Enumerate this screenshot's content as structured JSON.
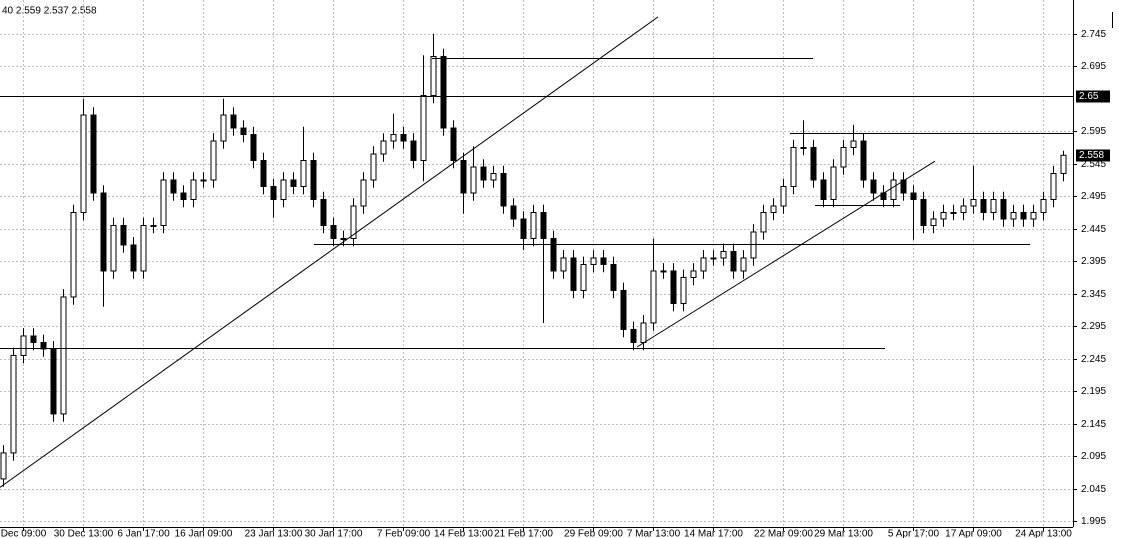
{
  "chart_data": {
    "type": "candlestick",
    "header": "40 2.559 2.537 2.558",
    "categories": [
      null,
      null,
      "Dec 09:00",
      null,
      null,
      null,
      null,
      null,
      "30 Dec 13:00",
      null,
      null,
      null,
      null,
      null,
      "6 Jan 17:00",
      null,
      null,
      null,
      null,
      null,
      "16 Jan 09:00",
      null,
      null,
      null,
      null,
      null,
      null,
      "23 Jan 13:00",
      null,
      null,
      null,
      null,
      null,
      "30 Jan 17:00",
      null,
      null,
      null,
      null,
      null,
      null,
      "7 Feb 09:00",
      null,
      null,
      null,
      null,
      null,
      "14 Feb 13:00",
      null,
      null,
      null,
      null,
      null,
      "21 Feb 17:00",
      null,
      null,
      null,
      null,
      null,
      null,
      "29 Feb 09:00",
      null,
      null,
      null,
      null,
      null,
      "7 Mar 13:00",
      null,
      null,
      null,
      null,
      null,
      "14 Mar 17:00",
      null,
      null,
      null,
      null,
      null,
      null,
      "22 Mar 09:00",
      null,
      null,
      null,
      null,
      null,
      "29 Mar 13:00",
      null,
      null,
      null,
      null,
      null,
      null,
      "5 Apr 17:00",
      null,
      null,
      null,
      null,
      null,
      "17 Apr 09:00",
      null,
      null,
      null,
      null,
      null,
      null,
      "24 Apr 13:00",
      null,
      null
    ],
    "open": [
      2.06,
      2.1,
      2.25,
      2.28,
      2.27,
      2.26,
      2.16,
      2.34,
      2.47,
      2.62,
      2.5,
      2.38,
      2.45,
      2.42,
      2.38,
      2.45,
      2.45,
      2.52,
      2.5,
      2.49,
      2.52,
      2.52,
      2.58,
      2.62,
      2.6,
      2.59,
      2.55,
      2.51,
      2.49,
      2.52,
      2.51,
      2.55,
      2.49,
      2.45,
      2.43,
      2.43,
      2.48,
      2.52,
      2.56,
      2.58,
      2.59,
      2.58,
      2.55,
      2.65,
      2.71,
      2.6,
      2.55,
      2.5,
      2.54,
      2.52,
      2.53,
      2.48,
      2.46,
      2.43,
      2.47,
      2.43,
      2.38,
      2.4,
      2.35,
      2.39,
      2.4,
      2.39,
      2.35,
      2.29,
      2.27,
      2.3,
      2.38,
      2.38,
      2.33,
      2.37,
      2.38,
      2.4,
      2.4,
      2.41,
      2.38,
      2.4,
      2.44,
      2.47,
      2.48,
      2.51,
      2.57,
      2.57,
      2.52,
      2.49,
      2.54,
      2.57,
      2.58,
      2.52,
      2.5,
      2.49,
      2.52,
      2.5,
      2.49,
      2.45,
      2.46,
      2.47,
      2.47,
      2.48,
      2.49,
      2.47,
      2.49,
      2.46,
      2.47,
      2.46,
      2.47,
      2.49,
      2.53
    ],
    "high": [
      2.112,
      2.262,
      2.292,
      2.292,
      2.282,
      2.272,
      2.352,
      2.482,
      2.645,
      2.632,
      2.512,
      2.462,
      2.462,
      2.432,
      2.462,
      2.462,
      2.532,
      2.532,
      2.512,
      2.532,
      2.532,
      2.592,
      2.645,
      2.632,
      2.612,
      2.602,
      2.562,
      2.522,
      2.532,
      2.532,
      2.602,
      2.562,
      2.502,
      2.462,
      2.442,
      2.492,
      2.532,
      2.572,
      2.592,
      2.622,
      2.602,
      2.592,
      2.712,
      2.745,
      2.722,
      2.612,
      2.562,
      2.572,
      2.552,
      2.542,
      2.542,
      2.492,
      2.472,
      2.482,
      2.482,
      2.442,
      2.412,
      2.412,
      2.402,
      2.412,
      2.412,
      2.402,
      2.362,
      2.302,
      2.312,
      2.43,
      2.392,
      2.392,
      2.382,
      2.392,
      2.412,
      2.412,
      2.422,
      2.422,
      2.412,
      2.452,
      2.482,
      2.492,
      2.522,
      2.582,
      2.612,
      2.582,
      2.532,
      2.552,
      2.582,
      2.605,
      2.592,
      2.532,
      2.512,
      2.532,
      2.532,
      2.512,
      2.502,
      2.472,
      2.482,
      2.482,
      2.492,
      2.542,
      2.502,
      2.502,
      2.502,
      2.482,
      2.482,
      2.482,
      2.502,
      2.542,
      2.565
    ],
    "low": [
      2.048,
      2.088,
      2.238,
      2.258,
      2.248,
      2.148,
      2.148,
      2.328,
      2.458,
      2.488,
      2.325,
      2.368,
      2.408,
      2.368,
      2.368,
      2.438,
      2.438,
      2.488,
      2.478,
      2.478,
      2.508,
      2.508,
      2.568,
      2.588,
      2.578,
      2.538,
      2.498,
      2.462,
      2.478,
      2.498,
      2.498,
      2.478,
      2.438,
      2.418,
      2.418,
      2.418,
      2.468,
      2.508,
      2.548,
      2.568,
      2.568,
      2.538,
      2.518,
      2.638,
      2.588,
      2.538,
      2.468,
      2.488,
      2.508,
      2.508,
      2.468,
      2.448,
      2.412,
      2.418,
      2.3,
      2.368,
      2.368,
      2.338,
      2.338,
      2.378,
      2.378,
      2.338,
      2.278,
      2.258,
      2.258,
      2.288,
      2.368,
      2.318,
      2.318,
      2.358,
      2.368,
      2.388,
      2.388,
      2.368,
      2.368,
      2.388,
      2.428,
      2.458,
      2.468,
      2.498,
      2.558,
      2.508,
      2.478,
      2.478,
      2.528,
      2.558,
      2.508,
      2.488,
      2.478,
      2.478,
      2.488,
      2.428,
      2.438,
      2.438,
      2.448,
      2.458,
      2.458,
      2.468,
      2.458,
      2.458,
      2.448,
      2.448,
      2.448,
      2.448,
      2.458,
      2.478,
      2.518
    ],
    "close": [
      2.1,
      2.25,
      2.28,
      2.27,
      2.26,
      2.16,
      2.34,
      2.47,
      2.62,
      2.5,
      2.38,
      2.45,
      2.42,
      2.38,
      2.45,
      2.45,
      2.52,
      2.5,
      2.49,
      2.52,
      2.52,
      2.58,
      2.62,
      2.6,
      2.59,
      2.55,
      2.51,
      2.49,
      2.52,
      2.51,
      2.55,
      2.49,
      2.45,
      2.43,
      2.43,
      2.48,
      2.52,
      2.56,
      2.58,
      2.59,
      2.58,
      2.55,
      2.65,
      2.71,
      2.6,
      2.55,
      2.5,
      2.54,
      2.52,
      2.53,
      2.48,
      2.46,
      2.43,
      2.47,
      2.43,
      2.38,
      2.4,
      2.35,
      2.39,
      2.4,
      2.39,
      2.35,
      2.29,
      2.27,
      2.3,
      2.38,
      2.38,
      2.33,
      2.37,
      2.38,
      2.4,
      2.4,
      2.41,
      2.38,
      2.4,
      2.44,
      2.47,
      2.48,
      2.51,
      2.57,
      2.57,
      2.52,
      2.49,
      2.54,
      2.57,
      2.58,
      2.52,
      2.5,
      2.49,
      2.52,
      2.5,
      2.49,
      2.45,
      2.46,
      2.47,
      2.47,
      2.48,
      2.49,
      2.47,
      2.49,
      2.46,
      2.47,
      2.46,
      2.47,
      2.49,
      2.53,
      2.558
    ],
    "up_color": "#ffffff",
    "down_color": "#000000",
    "line_color": "#000000",
    "ylim": [
      1.986,
      2.797
    ],
    "yticks": [
      2.745,
      2.695,
      2.595,
      2.545,
      2.495,
      2.445,
      2.395,
      2.345,
      2.295,
      2.245,
      2.195,
      2.145,
      2.095,
      2.045,
      1.995
    ],
    "grid": true,
    "hlines": [
      {
        "price": 2.65
      }
    ],
    "segments": [
      {
        "price": 2.262,
        "x1": -0.3,
        "x2": 88.2
      },
      {
        "price": 2.708,
        "x1": 42.9,
        "x2": 81
      },
      {
        "price": 2.422,
        "x1": 31.1,
        "x2": 102.7
      },
      {
        "price": 2.592,
        "x1": 78.7,
        "x2": 107
      },
      {
        "price": 2.482,
        "x1": 81.2,
        "x2": 89.7
      }
    ],
    "trendlines": [
      {
        "x1": -0.3,
        "p1": 2.047,
        "x2": 65.5,
        "p2": 2.771
      },
      {
        "x1": 63.4,
        "p1": 2.263,
        "x2": 93.2,
        "p2": 2.549
      }
    ]
  }
}
